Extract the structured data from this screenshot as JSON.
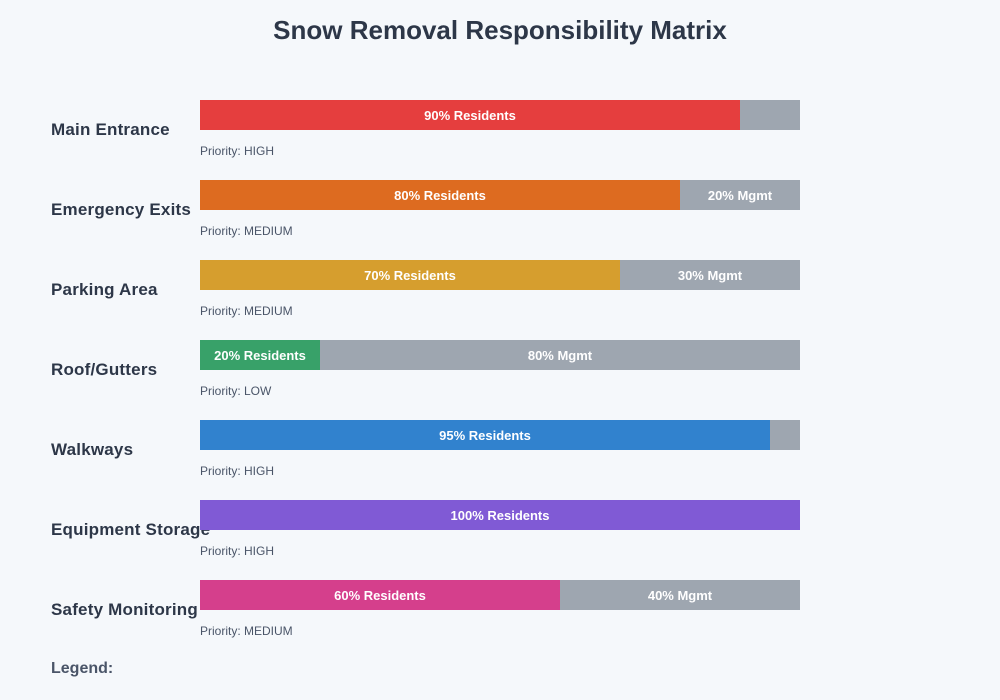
{
  "page": {
    "title": "Snow Removal Responsibility Matrix",
    "legend_label": "Legend:",
    "background": "#f5f8fb"
  },
  "colors": {
    "track_gray": "#9ea6b0",
    "title_text": "#2d3748",
    "area_label_text": "#2d3748",
    "priority_text": "#4a5568",
    "bar_text": "#ffffff"
  },
  "chart_data": {
    "type": "bar",
    "variant": "horizontal-stacked",
    "title": "Snow Removal Responsibility Matrix",
    "x_range": [
      0,
      100
    ],
    "grid": false,
    "legend_position": "bottom",
    "categories": [
      "Main Entrance",
      "Emergency Exits",
      "Parking Area",
      "Roof/Gutters",
      "Walkways",
      "Equipment Storage",
      "Safety Monitoring"
    ],
    "series": [
      {
        "name": "Residents",
        "values": [
          90,
          80,
          70,
          20,
          95,
          100,
          60
        ]
      },
      {
        "name": "Mgmt",
        "values": [
          10,
          20,
          30,
          80,
          5,
          0,
          40
        ]
      }
    ],
    "rows": [
      {
        "area": "Main Entrance",
        "residents_pct": 90,
        "mgmt_pct": 10,
        "residents_label": "90% Residents",
        "mgmt_label": "",
        "priority": "Priority: HIGH",
        "bar_color": "#e53e3e"
      },
      {
        "area": "Emergency Exits",
        "residents_pct": 80,
        "mgmt_pct": 20,
        "residents_label": "80% Residents",
        "mgmt_label": "20% Mgmt",
        "priority": "Priority: MEDIUM",
        "bar_color": "#dd6b20"
      },
      {
        "area": "Parking Area",
        "residents_pct": 70,
        "mgmt_pct": 30,
        "residents_label": "70% Residents",
        "mgmt_label": "30% Mgmt",
        "priority": "Priority: MEDIUM",
        "bar_color": "#d69e2e"
      },
      {
        "area": "Roof/Gutters",
        "residents_pct": 20,
        "mgmt_pct": 80,
        "residents_label": "20% Residents",
        "mgmt_label": "80% Mgmt",
        "priority": "Priority: LOW",
        "bar_color": "#38a169"
      },
      {
        "area": "Walkways",
        "residents_pct": 95,
        "mgmt_pct": 5,
        "residents_label": "95% Residents",
        "mgmt_label": "",
        "priority": "Priority: HIGH",
        "bar_color": "#3182ce"
      },
      {
        "area": "Equipment Storage",
        "residents_pct": 100,
        "mgmt_pct": 0,
        "residents_label": "100% Residents",
        "mgmt_label": "",
        "priority": "Priority: HIGH",
        "bar_color": "#805ad5"
      },
      {
        "area": "Safety Monitoring",
        "residents_pct": 60,
        "mgmt_pct": 40,
        "residents_label": "60% Residents",
        "mgmt_label": "40% Mgmt",
        "priority": "Priority: MEDIUM",
        "bar_color": "#d53f8c"
      }
    ]
  }
}
